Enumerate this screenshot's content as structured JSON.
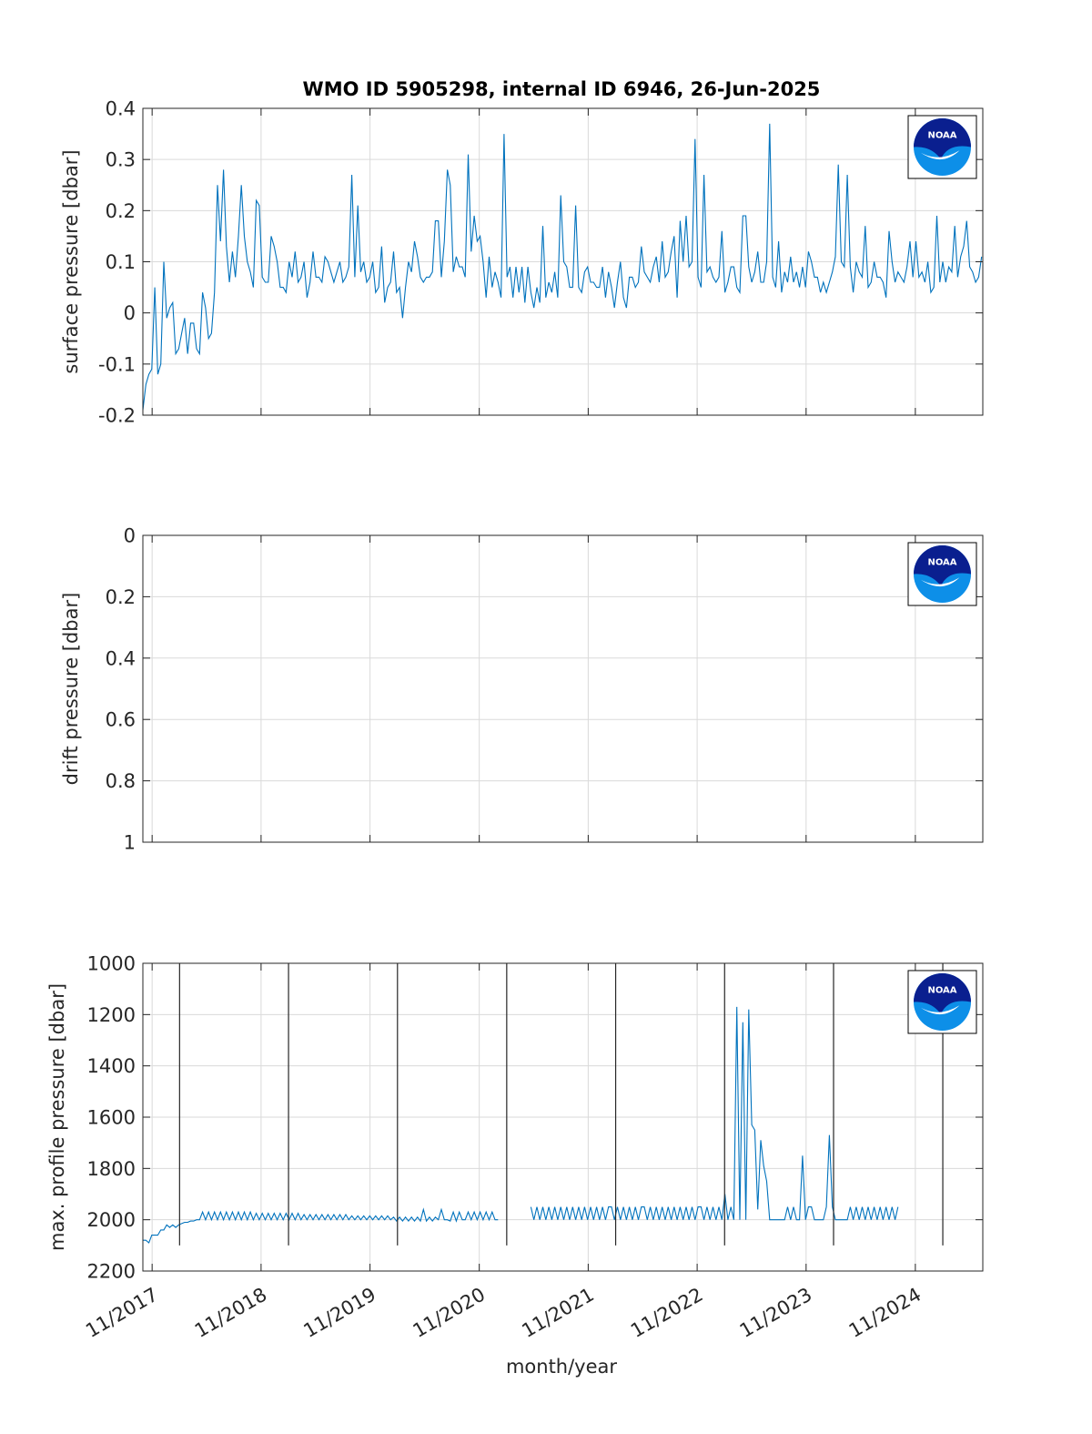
{
  "figure": {
    "title": "WMO ID 5905298, internal ID 6946, 26-Jun-2025",
    "xlabel": "month/year",
    "x_tick_labels": [
      "11/2017",
      "11/2018",
      "11/2019",
      "11/2020",
      "11/2021",
      "11/2022",
      "11/2023",
      "11/2024"
    ],
    "logo_text": "NOAA",
    "colors": {
      "line": "#0072BD",
      "grid": "#DADADA",
      "axis": "#262626",
      "logo_navy": "#0A1F8F",
      "logo_sky": "#0D8FE8"
    }
  },
  "chart_data": [
    {
      "type": "line",
      "name": "surface",
      "ylabel": "surface pressure [dbar]",
      "ylim": [
        -0.2,
        0.4
      ],
      "y_reverse": false,
      "y_ticks": [
        -0.2,
        -0.1,
        0,
        0.1,
        0.2,
        0.3,
        0.4
      ],
      "y_tick_labels": [
        "-0.2",
        "-0.1",
        "0",
        "0.1",
        "0.2",
        "0.3",
        "0.4"
      ],
      "xlim": [
        "2017-10-01",
        "2025-06-15"
      ],
      "x_ticks": [
        "2017-11-01",
        "2018-11-01",
        "2019-11-01",
        "2020-11-01",
        "2021-11-01",
        "2022-11-01",
        "2023-11-01",
        "2024-11-01"
      ],
      "grid": true,
      "series": [
        {
          "x_start": "2017-10-01",
          "x_step_days": 10,
          "y": [
            -0.19,
            -0.14,
            -0.12,
            -0.11,
            0.05,
            -0.12,
            -0.1,
            0.1,
            -0.01,
            0.01,
            0.02,
            -0.08,
            -0.07,
            -0.04,
            -0.01,
            -0.08,
            -0.02,
            -0.02,
            -0.07,
            -0.08,
            0.04,
            0.01,
            -0.05,
            -0.04,
            0.04,
            0.25,
            0.14,
            0.28,
            0.13,
            0.06,
            0.12,
            0.07,
            0.15,
            0.25,
            0.15,
            0.1,
            0.08,
            0.05,
            0.22,
            0.21,
            0.07,
            0.06,
            0.06,
            0.15,
            0.13,
            0.1,
            0.05,
            0.05,
            0.04,
            0.1,
            0.07,
            0.12,
            0.06,
            0.07,
            0.1,
            0.03,
            0.06,
            0.12,
            0.07,
            0.07,
            0.06,
            0.11,
            0.1,
            0.08,
            0.06,
            0.08,
            0.1,
            0.06,
            0.07,
            0.09,
            0.27,
            0.07,
            0.21,
            0.08,
            0.1,
            0.06,
            0.07,
            0.1,
            0.04,
            0.05,
            0.13,
            0.02,
            0.05,
            0.06,
            0.12,
            0.04,
            0.05,
            -0.01,
            0.05,
            0.1,
            0.08,
            0.14,
            0.11,
            0.07,
            0.06,
            0.07,
            0.07,
            0.08,
            0.18,
            0.18,
            0.07,
            0.14,
            0.28,
            0.25,
            0.08,
            0.11,
            0.09,
            0.09,
            0.07,
            0.31,
            0.12,
            0.19,
            0.14,
            0.15,
            0.1,
            0.03,
            0.11,
            0.05,
            0.08,
            0.06,
            0.03,
            0.35,
            0.07,
            0.09,
            0.03,
            0.09,
            0.04,
            0.09,
            0.02,
            0.09,
            0.04,
            0.01,
            0.05,
            0.02,
            0.17,
            0.03,
            0.06,
            0.04,
            0.08,
            0.03,
            0.23,
            0.1,
            0.09,
            0.05,
            0.05,
            0.21,
            0.05,
            0.04,
            0.08,
            0.09,
            0.06,
            0.06,
            0.05,
            0.05,
            0.09,
            0.03,
            0.08,
            0.05,
            0.01,
            0.06,
            0.1,
            0.03,
            0.01,
            0.07,
            0.07,
            0.05,
            0.06,
            0.13,
            0.08,
            0.07,
            0.06,
            0.09,
            0.11,
            0.06,
            0.14,
            0.07,
            0.08,
            0.12,
            0.15,
            0.03,
            0.18,
            0.1,
            0.19,
            0.09,
            0.1,
            0.34,
            0.07,
            0.05,
            0.27,
            0.08,
            0.09,
            0.07,
            0.06,
            0.07,
            0.16,
            0.04,
            0.06,
            0.09,
            0.09,
            0.05,
            0.04,
            0.19,
            0.19,
            0.09,
            0.06,
            0.08,
            0.12,
            0.06,
            0.06,
            0.1,
            0.37,
            0.07,
            0.05,
            0.14,
            0.04,
            0.08,
            0.06,
            0.11,
            0.06,
            0.08,
            0.05,
            0.09,
            0.05,
            0.12,
            0.1,
            0.07,
            0.07,
            0.04,
            0.06,
            0.04,
            0.06,
            0.08,
            0.11,
            0.29,
            0.1,
            0.09,
            0.27,
            0.09,
            0.04,
            0.1,
            0.08,
            0.07,
            0.17,
            0.05,
            0.06,
            0.1,
            0.07,
            0.07,
            0.06,
            0.03,
            0.16,
            0.1,
            0.06,
            0.08,
            0.07,
            0.06,
            0.09,
            0.14,
            0.07,
            0.14,
            0.07,
            0.08,
            0.06,
            0.1,
            0.04,
            0.05,
            0.19,
            0.06,
            0.1,
            0.06,
            0.09,
            0.08,
            0.17,
            0.07,
            0.11,
            0.13,
            0.18,
            0.09,
            0.08,
            0.06,
            0.07,
            0.11,
            0.09
          ]
        }
      ]
    },
    {
      "type": "line",
      "name": "drift",
      "ylabel": "drift pressure [dbar]",
      "ylim": [
        0,
        1
      ],
      "y_reverse": true,
      "y_ticks": [
        0,
        0.2,
        0.4,
        0.6,
        0.8,
        1
      ],
      "y_tick_labels": [
        "0",
        "0.2",
        "0.4",
        "0.6",
        "0.8",
        "1"
      ],
      "xlim": [
        "2017-10-01",
        "2025-06-15"
      ],
      "x_ticks": [
        "2017-11-01",
        "2018-11-01",
        "2019-11-01",
        "2020-11-01",
        "2021-11-01",
        "2022-11-01",
        "2023-11-01",
        "2024-11-01"
      ],
      "grid": true,
      "series": []
    },
    {
      "type": "line",
      "name": "maxpres",
      "ylabel": "max. profile pressure [dbar]",
      "ylim": [
        1000,
        2200
      ],
      "y_reverse": true,
      "y_ticks": [
        1000,
        1200,
        1400,
        1600,
        1800,
        2000,
        2200
      ],
      "y_tick_labels": [
        "1000",
        "1200",
        "1400",
        "1600",
        "1800",
        "2000",
        "2200"
      ],
      "xlim": [
        "2017-10-01",
        "2025-06-15"
      ],
      "x_ticks": [
        "2017-11-01",
        "2018-11-01",
        "2019-11-01",
        "2020-11-01",
        "2021-11-01",
        "2022-11-01",
        "2023-11-01",
        "2024-11-01"
      ],
      "grid": true,
      "marker_lines": {
        "dates": [
          "2018-02-01",
          "2019-02-01",
          "2020-02-01",
          "2021-02-01",
          "2022-02-01",
          "2023-02-01",
          "2024-02-01",
          "2025-02-01"
        ],
        "y_from": 1000,
        "y_to": 2100,
        "color": "#262626"
      },
      "series": [
        {
          "x_start": "2017-10-01",
          "x_step_days": 10,
          "y": [
            2080,
            2080,
            2090,
            2060,
            2060,
            2060,
            2040,
            2040,
            2020,
            2030,
            2020,
            2030,
            2020,
            2015,
            2010,
            2010,
            2005,
            2005,
            2000,
            2000,
            1970,
            2000,
            1970,
            2000,
            1970,
            2000,
            1970,
            2000,
            1970,
            2000,
            1970,
            2000,
            1970,
            2000,
            1970,
            2000,
            1970,
            2000,
            1975,
            2000,
            1975,
            2000,
            1975,
            2000,
            1975,
            2000,
            1975,
            2000,
            1975,
            2000,
            1975,
            2000,
            1975,
            2000,
            1980,
            2000,
            1980,
            2000,
            1980,
            2000,
            1980,
            2000,
            1980,
            2000,
            1980,
            2000,
            1980,
            2000,
            1980,
            2000,
            1985,
            2000,
            1985,
            2000,
            1985,
            2000,
            1985,
            2000,
            1985,
            2000,
            1985,
            2000,
            1985,
            2000,
            1990,
            2005,
            1990,
            2005,
            1990,
            2005,
            1990,
            2005,
            1990,
            2005,
            1960,
            2005,
            1990,
            2005,
            1990,
            2000,
            1960,
            2000,
            2000,
            2005,
            1970,
            2005,
            1970,
            2000,
            2000,
            1970,
            2000,
            1970,
            2000,
            1970,
            2000,
            1970,
            2000,
            1970,
            2000,
            2000,
            null,
            null,
            null,
            null,
            null,
            null,
            null,
            null,
            null,
            null,
            1950,
            2000,
            1950,
            2000,
            1950,
            2000,
            1950,
            2000,
            1950,
            2000,
            1950,
            2000,
            1950,
            2000,
            1950,
            2000,
            1950,
            2000,
            1950,
            2000,
            1950,
            2000,
            1950,
            2000,
            1950,
            2000,
            1950,
            1950,
            2000,
            1950,
            2000,
            1950,
            2000,
            1950,
            2000,
            1950,
            2000,
            1950,
            1950,
            2000,
            1950,
            2000,
            1950,
            2000,
            1950,
            2000,
            1950,
            2000,
            1950,
            2000,
            1950,
            2000,
            1950,
            2000,
            1950,
            2000,
            1950,
            1950,
            2000,
            1950,
            2000,
            1950,
            2000,
            1950,
            2000,
            1900,
            2000,
            1950,
            2000,
            1170,
            2000,
            1230,
            2000,
            1180,
            1630,
            1650,
            1960,
            1690,
            1790,
            1850,
            2000,
            2000,
            2000,
            2000,
            2000,
            2000,
            1950,
            2000,
            1950,
            2000,
            2000,
            1750,
            2000,
            1950,
            1950,
            2000,
            2000,
            2000,
            2000,
            1950,
            1670,
            1950,
            2000,
            2000,
            2000,
            2000,
            2000,
            1950,
            2000,
            1950,
            2000,
            1950,
            2000,
            1950,
            2000,
            1950,
            2000,
            1950,
            2000,
            1950,
            2000,
            1950,
            2000,
            1950
          ]
        }
      ]
    }
  ]
}
